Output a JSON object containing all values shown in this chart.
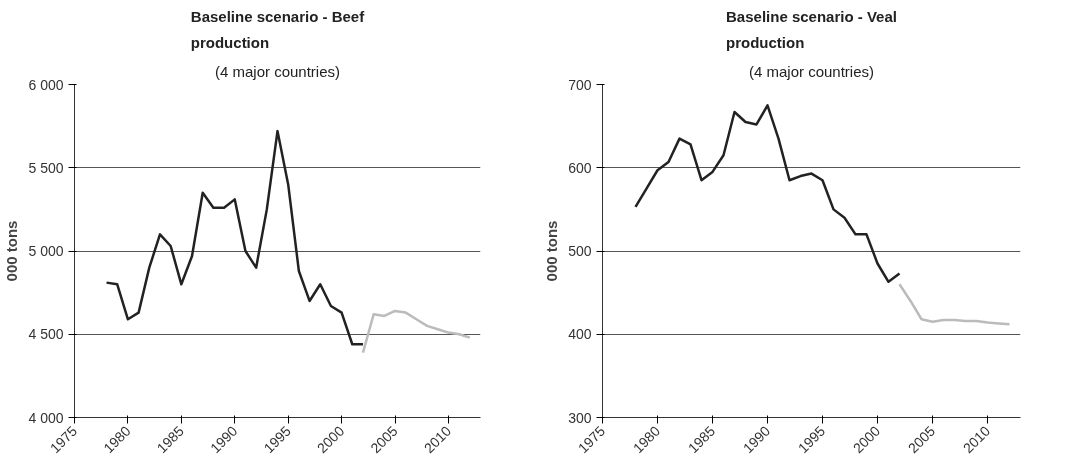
{
  "chart_data": [
    {
      "type": "line",
      "title": "Baseline scenario - Beef production",
      "subtitle": "(4 major countries)",
      "ylabel": "000 tons",
      "xlim": [
        1975,
        2013
      ],
      "xticks": [
        1975,
        1980,
        1985,
        1990,
        1995,
        2000,
        2005,
        2010
      ],
      "ylim": [
        4000,
        6000
      ],
      "yticks": [
        {
          "value": 4000,
          "label": "4 000"
        },
        {
          "value": 4500,
          "label": "4 500"
        },
        {
          "value": 5000,
          "label": "5 000"
        },
        {
          "value": 5500,
          "label": "5 500"
        },
        {
          "value": 6000,
          "label": "6 000"
        }
      ],
      "grid": "y",
      "line_style": "solid",
      "series": [
        {
          "color": "#222222",
          "x": [
            1978,
            1979,
            1980,
            1981,
            1982,
            1983,
            1984,
            1985,
            1986,
            1987,
            1988,
            1989,
            1990,
            1991,
            1992,
            1993,
            1994,
            1995,
            1996,
            1997,
            1998,
            1999,
            2000,
            2001,
            2002
          ],
          "values": [
            4810,
            4800,
            4590,
            4630,
            4900,
            5100,
            5030,
            4800,
            4970,
            5350,
            5260,
            5260,
            5310,
            5000,
            4900,
            5250,
            5720,
            5400,
            4880,
            4700,
            4800,
            4670,
            4630,
            4440,
            4440
          ]
        },
        {
          "color": "#bbbbbb",
          "x": [
            2002,
            2003,
            2004,
            2005,
            2006,
            2007,
            2008,
            2009,
            2010,
            2011,
            2012
          ],
          "values": [
            4390,
            4620,
            4610,
            4640,
            4630,
            4590,
            4550,
            4530,
            4510,
            4500,
            4480
          ]
        }
      ]
    },
    {
      "type": "line",
      "title": "Baseline scenario - Veal production",
      "subtitle": "(4 major countries)",
      "ylabel": "000 tons",
      "xlim": [
        1975,
        2013
      ],
      "xticks": [
        1975,
        1980,
        1985,
        1990,
        1995,
        2000,
        2005,
        2010
      ],
      "ylim": [
        300,
        700
      ],
      "yticks": [
        300,
        400,
        500,
        600,
        700
      ],
      "grid": "y",
      "line_style": "solid",
      "series": [
        {
          "color": "#222222",
          "x": [
            1978,
            1979,
            1980,
            1981,
            1982,
            1983,
            1984,
            1985,
            1986,
            1987,
            1988,
            1989,
            1990,
            1991,
            1992,
            1993,
            1994,
            1995,
            1996,
            1997,
            1998,
            1999,
            2000,
            2001,
            2002
          ],
          "values": [
            553,
            575,
            597,
            607,
            635,
            628,
            585,
            595,
            615,
            667,
            655,
            652,
            675,
            635,
            585,
            590,
            593,
            585,
            550,
            540,
            520,
            520,
            485,
            463,
            473
          ]
        },
        {
          "color": "#bbbbbb",
          "x": [
            2002,
            2003,
            2004,
            2005,
            2006,
            2007,
            2008,
            2009,
            2010,
            2011,
            2012
          ],
          "values": [
            460,
            440,
            418,
            415,
            417,
            417,
            416,
            416,
            414,
            413,
            412
          ]
        }
      ]
    }
  ]
}
